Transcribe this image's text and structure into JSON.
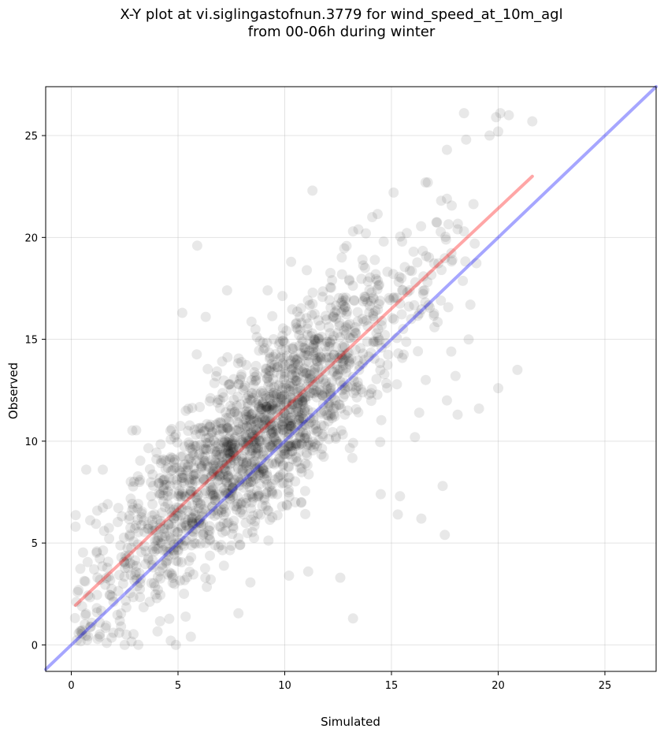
{
  "title_line1": "X-Y plot at vi.siglingastofnun.3779 for wind_speed_at_10m_agl",
  "title_line2": "from 00-06h during winter",
  "chart_data": {
    "type": "scatter",
    "xlabel": "Simulated",
    "ylabel": "Observed",
    "xlim": [
      -1.2,
      27.4
    ],
    "ylim": [
      -1.3,
      27.4
    ],
    "xticks": [
      0,
      5,
      10,
      15,
      20,
      25
    ],
    "yticks": [
      0,
      5,
      10,
      15,
      20,
      25
    ],
    "grid": true,
    "point_color": "#000000",
    "point_alpha": 0.09,
    "approx_point_count": 1800,
    "cloud_model": {
      "slope": 0.99,
      "intercept": 1.6,
      "spread": 2.2,
      "x_mean": 8.6,
      "x_sd": 3.7
    },
    "outliers": [
      [
        18.4,
        26.1
      ],
      [
        20.1,
        26.1
      ],
      [
        20.5,
        26.0
      ],
      [
        19.9,
        25.9
      ],
      [
        21.6,
        25.7
      ],
      [
        20.0,
        25.2
      ],
      [
        19.6,
        25.0
      ],
      [
        18.5,
        24.8
      ],
      [
        17.6,
        24.3
      ],
      [
        16.6,
        22.7
      ],
      [
        16.7,
        22.7
      ],
      [
        11.3,
        22.3
      ],
      [
        15.1,
        22.2
      ],
      [
        17.6,
        21.9
      ],
      [
        14.1,
        21.0
      ],
      [
        13.8,
        20.2
      ],
      [
        18.1,
        20.4
      ],
      [
        18.4,
        20.3
      ],
      [
        18.9,
        19.7
      ],
      [
        5.9,
        19.6
      ],
      [
        15.5,
        19.8
      ],
      [
        13.2,
        20.3
      ],
      [
        18.7,
        16.7
      ],
      [
        19.1,
        11.6
      ],
      [
        20.0,
        12.6
      ],
      [
        20.9,
        13.5
      ],
      [
        17.4,
        7.8
      ],
      [
        17.5,
        5.4
      ],
      [
        16.4,
        6.2
      ],
      [
        15.3,
        6.4
      ],
      [
        13.2,
        1.3
      ],
      [
        12.6,
        3.3
      ],
      [
        10.2,
        3.4
      ],
      [
        11.1,
        3.6
      ],
      [
        15.4,
        7.3
      ],
      [
        14.5,
        7.4
      ],
      [
        0.2,
        5.8
      ],
      [
        0.7,
        8.6
      ],
      [
        5.2,
        16.3
      ],
      [
        6.3,
        16.1
      ],
      [
        7.3,
        17.4
      ],
      [
        9.2,
        17.4
      ],
      [
        17.8,
        14.4
      ],
      [
        18.0,
        13.2
      ],
      [
        18.1,
        11.3
      ],
      [
        12.3,
        11.3
      ],
      [
        10.3,
        18.8
      ],
      [
        16.1,
        10.2
      ],
      [
        16.3,
        11.4
      ],
      [
        17.6,
        12.0
      ],
      [
        0.3,
        2.6
      ],
      [
        0.9,
        0.9
      ],
      [
        2.5,
        0.0
      ],
      [
        4.9,
        0.0
      ],
      [
        5.6,
        0.4
      ]
    ],
    "fit_line": {
      "color": "#ff0000",
      "alpha": 0.35,
      "x": [
        0.2,
        21.6
      ],
      "y": [
        1.95,
        23.0
      ]
    },
    "identity_line": {
      "color": "#0000ff",
      "alpha": 0.35,
      "x": [
        -1.2,
        27.4
      ],
      "y": [
        -1.2,
        27.4
      ]
    }
  }
}
